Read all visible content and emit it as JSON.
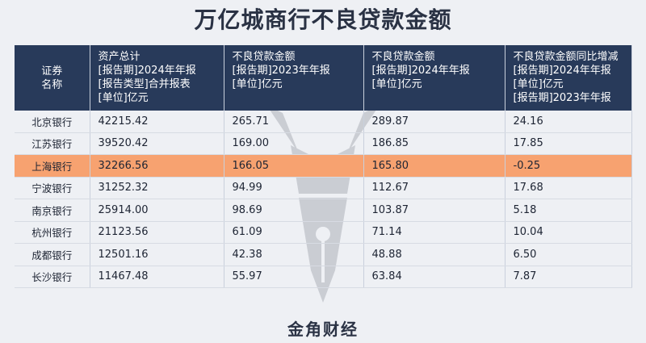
{
  "title": "万亿城商行不良贷款金额",
  "headers": [
    [
      "证券",
      "名称"
    ],
    [
      "资产总计",
      "[报告期]2024年年报",
      "[报告类型]合并报表",
      "[单位]亿元"
    ],
    [
      "不良贷款金额",
      "[报告期]2023年年报",
      "[单位]亿元"
    ],
    [
      "不良贷款金额",
      "[报告期]2024年年报",
      "[单位]亿元"
    ],
    [
      "不良贷款金额同比增减",
      "[报告期]2024年年报",
      "[单位]亿元",
      "[报告期]2023年年报"
    ]
  ],
  "rows": [
    [
      "北京银行",
      "42215.42",
      "265.71",
      "289.87",
      "24.16"
    ],
    [
      "江苏银行",
      "39520.42",
      "169.00",
      "186.85",
      "17.85"
    ],
    [
      "上海银行",
      "32266.56",
      "166.05",
      "165.80",
      "-0.25"
    ],
    [
      "宁波银行",
      "31252.32",
      "94.99",
      "112.67",
      "17.68"
    ],
    [
      "南京银行",
      "25914.00",
      "98.69",
      "103.87",
      "5.18"
    ],
    [
      "杭州银行",
      "21123.56",
      "61.09",
      "71.14",
      "10.04"
    ],
    [
      "成都银行",
      "12501.16",
      "42.38",
      "48.88",
      "6.50"
    ],
    [
      "长沙银行",
      "11467.48",
      "55.97",
      "63.84",
      "7.87"
    ]
  ],
  "highlight_row": 2,
  "colors": {
    "header_bg": "#283a5a",
    "highlight_bg": "#f7a270",
    "page_bg": "#eef0f4"
  },
  "footer": "金角财经"
}
